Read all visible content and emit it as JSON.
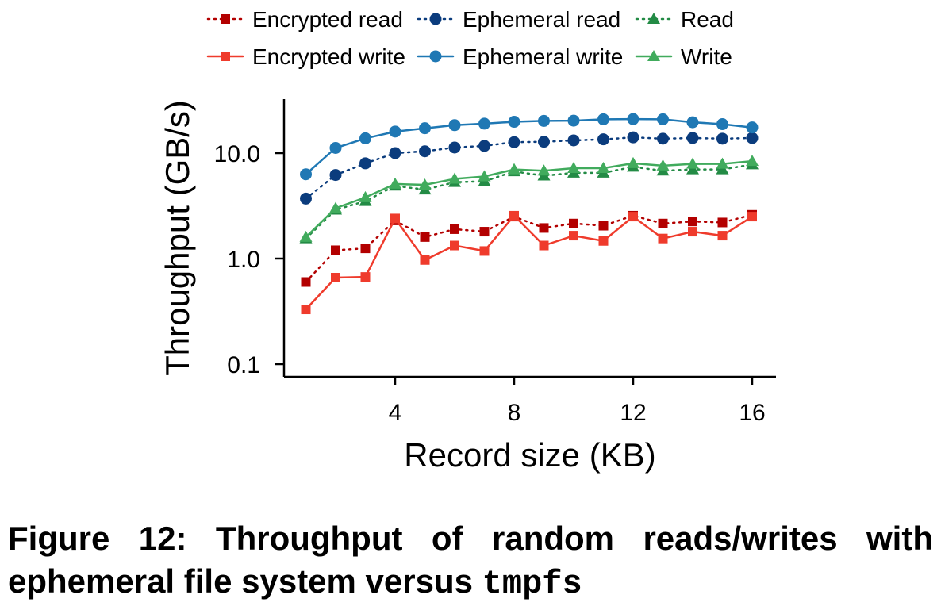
{
  "chart_data": {
    "type": "line",
    "xlabel": "Record size (KB)",
    "ylabel": "Throughput (GB/s)",
    "yscale": "log",
    "xlim": [
      0.3,
      16.9
    ],
    "ylim": [
      0.1,
      30
    ],
    "xticks": [
      4,
      8,
      12,
      16
    ],
    "xtick_labels": [
      "4",
      "8",
      "12",
      "16"
    ],
    "yticks": [
      0.1,
      1.0,
      10.0
    ],
    "ytick_labels": [
      "0.1",
      "1.0",
      "10.0"
    ],
    "grid": false,
    "legend_position": "top",
    "x": [
      1,
      2,
      3,
      4,
      5,
      6,
      7,
      8,
      9,
      10,
      11,
      12,
      13,
      14,
      15,
      16
    ],
    "series": [
      {
        "name": "Encrypted read",
        "color": "#b30000",
        "marker": "square",
        "dash": "dotted",
        "values": [
          0.6,
          1.2,
          1.25,
          2.3,
          1.6,
          1.9,
          1.8,
          2.5,
          1.95,
          2.15,
          2.05,
          2.55,
          2.15,
          2.25,
          2.2,
          2.6
        ]
      },
      {
        "name": "Ephemeral read",
        "color": "#0b3c7d",
        "marker": "circle",
        "dash": "dotted",
        "values": [
          3.7,
          6.2,
          8.0,
          10.0,
          10.4,
          11.3,
          11.7,
          12.7,
          12.8,
          13.2,
          13.5,
          14.1,
          13.7,
          13.9,
          13.7,
          13.9
        ]
      },
      {
        "name": "Read",
        "color": "#238b45",
        "marker": "triangle",
        "dash": "dotted",
        "values": [
          1.55,
          2.9,
          3.5,
          4.9,
          4.5,
          5.3,
          5.4,
          6.7,
          6.1,
          6.5,
          6.5,
          7.4,
          6.8,
          7.0,
          7.0,
          7.8
        ]
      },
      {
        "name": "Encrypted write",
        "color": "#ef3b2c",
        "marker": "square",
        "dash": "solid",
        "values": [
          0.33,
          0.66,
          0.67,
          2.4,
          0.97,
          1.33,
          1.18,
          2.55,
          1.33,
          1.65,
          1.47,
          2.5,
          1.55,
          1.8,
          1.65,
          2.5
        ]
      },
      {
        "name": "Ephemeral write",
        "color": "#1f78b4",
        "marker": "circle",
        "dash": "solid",
        "values": [
          6.3,
          11.2,
          13.8,
          16.0,
          17.2,
          18.4,
          19.0,
          19.8,
          20.2,
          20.3,
          20.9,
          21.0,
          20.9,
          19.6,
          18.8,
          17.5
        ]
      },
      {
        "name": "Write",
        "color": "#41ab5d",
        "marker": "triangle",
        "dash": "solid",
        "values": [
          1.6,
          3.0,
          3.8,
          5.1,
          5.0,
          5.7,
          6.0,
          7.0,
          6.8,
          7.2,
          7.2,
          8.0,
          7.6,
          7.9,
          7.9,
          8.4
        ]
      }
    ]
  },
  "caption": {
    "line1": "Figure 12: Throughput of random reads/writes with",
    "line2_text": "ephemeral file system versus ",
    "line2_code": "tmpfs"
  }
}
